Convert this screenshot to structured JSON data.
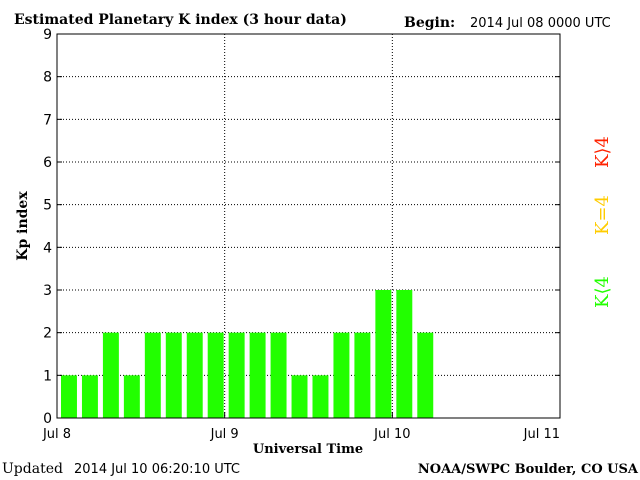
{
  "header": {
    "title": "Estimated Planetary K index (3 hour data)",
    "begin_label": "Begin:",
    "begin_value": "2014 Jul 08 0000 UTC"
  },
  "footer": {
    "updated_label": "Updated",
    "updated_value": "2014 Jul 10 06:20:10 UTC",
    "credit": "NOAA/SWPC Boulder, CO USA"
  },
  "legend": {
    "greater": "K⟩4",
    "equal": "K=4",
    "less": "K⟨4"
  },
  "colors": {
    "bar_less": "#22ff00",
    "bar_equal": "#ffcc00",
    "bar_greater": "#ff2200",
    "axis": "#000000",
    "grid": "#000000"
  },
  "chart_data": {
    "type": "bar",
    "title": "Estimated Planetary K index (3 hour data)",
    "xlabel": "Universal Time",
    "ylabel": "Kp index",
    "ylim": [
      0,
      9
    ],
    "yticks": [
      "0",
      "1",
      "2",
      "3",
      "4",
      "5",
      "6",
      "7",
      "8",
      "9"
    ],
    "xticks": [
      "Jul 8",
      "Jul 9",
      "Jul 10",
      "Jul 11"
    ],
    "grid": true,
    "values": [
      1,
      1,
      2,
      1,
      2,
      2,
      2,
      2,
      2,
      2,
      2,
      1,
      1,
      2,
      2,
      3,
      3,
      2
    ]
  }
}
